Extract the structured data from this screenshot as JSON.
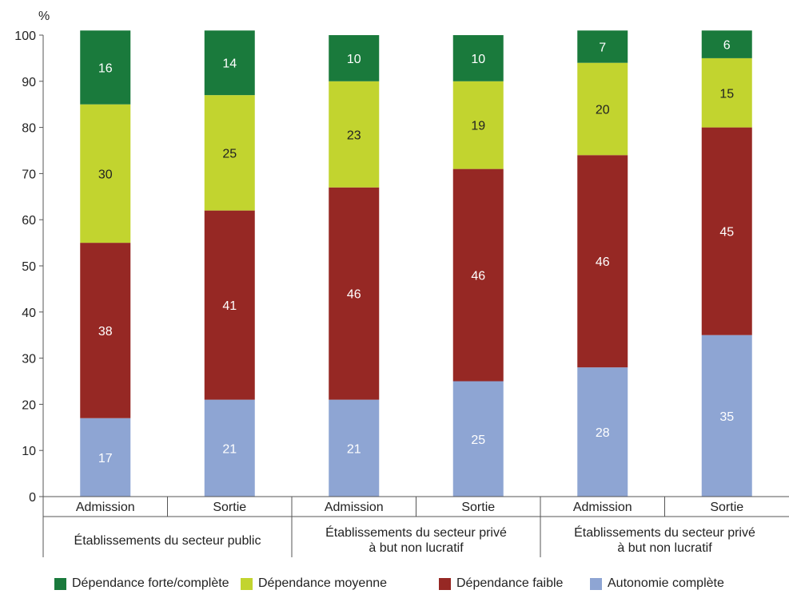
{
  "chart_data": {
    "type": "bar",
    "stacked": true,
    "ylabel": "%",
    "ylim": [
      0,
      100
    ],
    "yticks": [
      0,
      10,
      20,
      30,
      40,
      50,
      60,
      70,
      80,
      90,
      100
    ],
    "categories": [
      "Admission",
      "Sortie",
      "Admission",
      "Sortie",
      "Admission",
      "Sortie"
    ],
    "groups": [
      "Établissements du secteur public",
      "Établissements du secteur privé à but non lucratif",
      "Établissements du secteur privé à but non lucratif"
    ],
    "series": [
      {
        "name": "Autonomie complète",
        "color": "#8ea5d3",
        "values": [
          17,
          21,
          21,
          25,
          28,
          35
        ]
      },
      {
        "name": "Dépendance faible",
        "color": "#962824",
        "values": [
          38,
          41,
          46,
          46,
          46,
          45
        ]
      },
      {
        "name": "Dépendance moyenne",
        "color": "#c2d42f",
        "values": [
          30,
          25,
          23,
          19,
          20,
          15
        ]
      },
      {
        "name": "Dépendance forte/complète",
        "color": "#1a7a3c",
        "values": [
          16,
          14,
          10,
          10,
          7,
          6
        ]
      }
    ],
    "legend_order": [
      "Dépendance forte/complète",
      "Dépendance moyenne",
      "Dépendance faible",
      "Autonomie complète"
    ],
    "legend_position": "bottom",
    "grid": false
  }
}
